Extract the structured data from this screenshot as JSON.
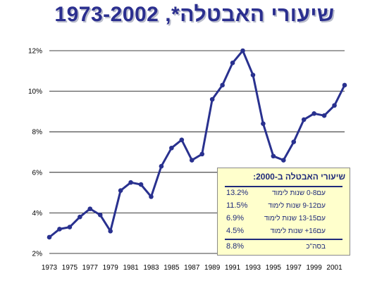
{
  "chart_data": {
    "type": "line",
    "title": "שיעורי האבטלה*, 1973-2002",
    "x": [
      "1973",
      "1974",
      "1975",
      "1976",
      "1977",
      "1978",
      "1979",
      "1980",
      "1981",
      "1982",
      "1983",
      "1984",
      "1985",
      "1986",
      "1987",
      "1988",
      "1989",
      "1990",
      "1991",
      "1992",
      "1993",
      "1994",
      "1995",
      "1996",
      "1997",
      "1998",
      "1999",
      "2000",
      "2001",
      "2002"
    ],
    "x_tick_labels": [
      "1973",
      "1975",
      "1977",
      "1979",
      "1981",
      "1983",
      "1985",
      "1987",
      "1989",
      "1991",
      "1993",
      "1995",
      "1997",
      "1999",
      "2001"
    ],
    "series": [
      {
        "values": [
          2.8,
          3.2,
          3.3,
          3.8,
          4.2,
          3.9,
          3.1,
          5.1,
          5.5,
          5.4,
          4.8,
          6.3,
          7.2,
          7.6,
          6.6,
          6.9,
          9.6,
          10.3,
          11.4,
          12.0,
          10.8,
          8.4,
          6.8,
          6.6,
          7.5,
          8.6,
          8.9,
          8.8,
          9.3,
          10.3
        ]
      }
    ],
    "ylim": [
      2,
      12
    ],
    "y_ticks": [
      "2%",
      "4%",
      "6%",
      "8%",
      "10%",
      "12%"
    ],
    "grid": "horizontal",
    "color": "#29318f"
  },
  "legend_box": {
    "title": "שיעורי האבטלה ב-2000:",
    "rows": [
      {
        "label": "עם0-8  שנות לימוד",
        "value": "13.2%"
      },
      {
        "label": "עם9-12  שנות לימוד",
        "value": "11.5%"
      },
      {
        "label": "עם13-15 שנות לימוד",
        "value": "6.9%"
      },
      {
        "label": "עם16+ שנות לימוד",
        "value": "4.5%"
      }
    ],
    "total_label": "בסה\"כ",
    "total_value": "8.8%",
    "background": "#ffffcc"
  }
}
